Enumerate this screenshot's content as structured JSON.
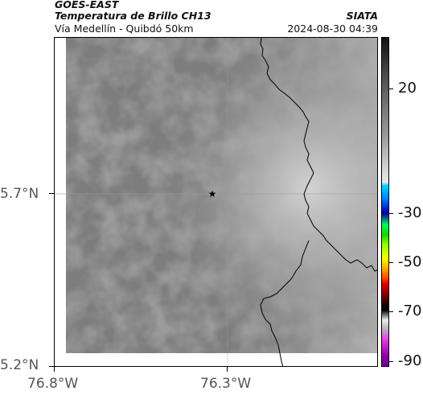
{
  "header": {
    "satellite": "GOES-EAST",
    "product": "Temperatura de Brillo CH13",
    "region": "Vía Medellín - Quibdó 50km",
    "org": "SIATA",
    "timestamp": "2024-08-30 04:39"
  },
  "axes": {
    "y_ticks": [
      "5.7°N",
      "5.2°N"
    ],
    "x_ticks": [
      "76.8°W",
      "76.3°W"
    ]
  },
  "colorbar": {
    "labels": [
      "20",
      "-30",
      "-50",
      "-70",
      "-90"
    ]
  },
  "marker": {
    "symbol": "★",
    "icon": "star-icon"
  },
  "colors": {
    "map_fill": "#7a7a7a",
    "border_line": "#000000",
    "gridline": "#9a9a9a"
  }
}
